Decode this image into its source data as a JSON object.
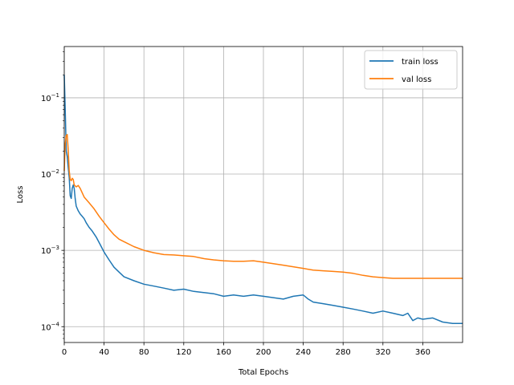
{
  "chart_data": {
    "type": "line",
    "title": "",
    "xlabel": "Total Epochs",
    "ylabel": "Loss",
    "xlim": [
      0,
      400
    ],
    "ylim": [
      6.2e-05,
      0.47
    ],
    "yscale": "log",
    "grid": true,
    "legend_position": "top-right",
    "x_ticks": [
      0,
      40,
      80,
      120,
      160,
      200,
      240,
      280,
      320,
      360
    ],
    "x_tick_labels": [
      "0",
      "40",
      "80",
      "120",
      "160",
      "200",
      "240",
      "280",
      "320",
      "360"
    ],
    "y_ticks": [
      0.0001,
      0.001,
      0.01,
      0.1
    ],
    "y_tick_labels": [
      {
        "base": "10",
        "exp": "−4"
      },
      {
        "base": "10",
        "exp": "−3"
      },
      {
        "base": "10",
        "exp": "−2"
      },
      {
        "base": "10",
        "exp": "−1"
      }
    ],
    "series": [
      {
        "name": "train loss",
        "color": "#1f77b4",
        "x": [
          0,
          1,
          2,
          3,
          4,
          5,
          6,
          7,
          8,
          9,
          10,
          11,
          12,
          14,
          16,
          18,
          20,
          22,
          25,
          28,
          32,
          36,
          40,
          45,
          50,
          55,
          60,
          70,
          80,
          90,
          100,
          110,
          120,
          130,
          140,
          150,
          160,
          170,
          180,
          190,
          200,
          210,
          220,
          230,
          240,
          245,
          250,
          260,
          270,
          280,
          290,
          300,
          310,
          320,
          330,
          340,
          345,
          350,
          355,
          360,
          370,
          380,
          390,
          400
        ],
        "y": [
          0.2,
          0.07,
          0.02,
          0.017,
          0.012,
          0.009,
          0.0052,
          0.0048,
          0.0065,
          0.0072,
          0.0065,
          0.0048,
          0.0038,
          0.0033,
          0.003,
          0.0028,
          0.0026,
          0.0023,
          0.002,
          0.0018,
          0.0015,
          0.0012,
          0.00095,
          0.00075,
          0.0006,
          0.00052,
          0.00045,
          0.0004,
          0.00036,
          0.00034,
          0.00032,
          0.0003,
          0.00031,
          0.00029,
          0.00028,
          0.00027,
          0.00025,
          0.00026,
          0.00025,
          0.00026,
          0.00025,
          0.00024,
          0.00023,
          0.00025,
          0.00026,
          0.00023,
          0.00021,
          0.0002,
          0.00019,
          0.00018,
          0.00017,
          0.00016,
          0.00015,
          0.00016,
          0.00015,
          0.00014,
          0.00015,
          0.00012,
          0.00013,
          0.000125,
          0.00013,
          0.000115,
          0.00011,
          0.00011
        ]
      },
      {
        "name": "val loss",
        "color": "#ff7f0e",
        "x": [
          0,
          1,
          2,
          3,
          4,
          5,
          6,
          7,
          8,
          9,
          10,
          12,
          14,
          16,
          20,
          25,
          30,
          35,
          40,
          45,
          50,
          55,
          60,
          70,
          80,
          90,
          100,
          110,
          120,
          130,
          140,
          150,
          160,
          170,
          180,
          190,
          200,
          210,
          220,
          230,
          240,
          250,
          260,
          270,
          280,
          290,
          300,
          310,
          320,
          330,
          340,
          350,
          360,
          370,
          380,
          390,
          400
        ],
        "y": [
          0.011,
          0.025,
          0.032,
          0.033,
          0.02,
          0.011,
          0.0085,
          0.0082,
          0.0088,
          0.0085,
          0.0072,
          0.0068,
          0.0071,
          0.0065,
          0.005,
          0.0042,
          0.0035,
          0.0028,
          0.0023,
          0.0019,
          0.0016,
          0.0014,
          0.0013,
          0.00112,
          0.001,
          0.00093,
          0.00088,
          0.00087,
          0.00085,
          0.00083,
          0.00078,
          0.00075,
          0.00073,
          0.00072,
          0.00072,
          0.00073,
          0.0007,
          0.00067,
          0.00064,
          0.00061,
          0.00058,
          0.00055,
          0.00054,
          0.00053,
          0.00052,
          0.0005,
          0.00047,
          0.00045,
          0.00044,
          0.00043,
          0.00043,
          0.00043,
          0.00043,
          0.00043,
          0.00043,
          0.00043,
          0.00043
        ]
      }
    ]
  }
}
